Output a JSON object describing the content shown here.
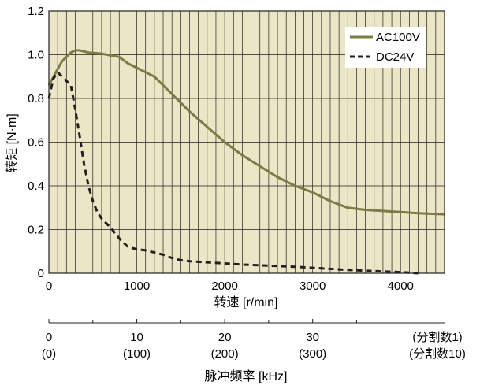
{
  "chart_data": {
    "type": "line",
    "xlabel": "转速 [r/min]",
    "ylabel": "转矩 [N·m]",
    "x_ticks": [
      "0",
      "1000",
      "2000",
      "3000",
      "4000"
    ],
    "y_ticks": [
      "0",
      "0.2",
      "0.4",
      "0.6",
      "0.8",
      "1.0",
      "1.2"
    ],
    "xlim": [
      0,
      4500
    ],
    "ylim": [
      0,
      1.2
    ],
    "grid": "vertical minor gridlines every 100 r/min, horizontal gridlines every 0.2 N·m",
    "background": "#ebe7c6",
    "legend_position": "top-right",
    "series": [
      {
        "name": "AC100V",
        "color": "#7a7b45",
        "style": "solid",
        "x": [
          0,
          80,
          150,
          250,
          300,
          350,
          450,
          600,
          800,
          900,
          1000,
          1100,
          1200,
          1300,
          1500,
          1600,
          1800,
          2000,
          2200,
          2400,
          2600,
          2800,
          3000,
          3200,
          3400,
          3600,
          3800,
          4000,
          4200,
          4500
        ],
        "y": [
          0.86,
          0.92,
          0.97,
          1.01,
          1.02,
          1.02,
          1.01,
          1.005,
          0.99,
          0.96,
          0.94,
          0.92,
          0.9,
          0.86,
          0.78,
          0.74,
          0.67,
          0.6,
          0.54,
          0.49,
          0.44,
          0.4,
          0.37,
          0.33,
          0.3,
          0.29,
          0.285,
          0.28,
          0.275,
          0.27
        ]
      },
      {
        "name": "DC24V",
        "color": "#231f20",
        "style": "dashed",
        "x": [
          0,
          50,
          100,
          150,
          200,
          250,
          300,
          350,
          400,
          450,
          500,
          550,
          600,
          700,
          800,
          900,
          1000,
          1100,
          1200,
          1300,
          1400,
          1500,
          1600,
          1800,
          2000,
          2200,
          2500,
          2800,
          3000,
          3200,
          3400,
          3700,
          4000,
          4200
        ],
        "y": [
          0.8,
          0.89,
          0.92,
          0.9,
          0.88,
          0.86,
          0.75,
          0.63,
          0.5,
          0.4,
          0.33,
          0.28,
          0.25,
          0.21,
          0.16,
          0.12,
          0.11,
          0.105,
          0.095,
          0.085,
          0.07,
          0.06,
          0.055,
          0.05,
          0.045,
          0.04,
          0.035,
          0.03,
          0.025,
          0.02,
          0.015,
          0.01,
          0.005,
          0.0
        ]
      }
    ],
    "secondary_axis": {
      "title": "脉冲频率 [kHz]",
      "ticks": [
        {
          "x": 0,
          "line1": "0",
          "line2": "(0)"
        },
        {
          "x": 1000,
          "line1": "10",
          "line2": "(100)"
        },
        {
          "x": 2000,
          "line1": "20",
          "line2": "(200)"
        },
        {
          "x": 3000,
          "line1": "30",
          "line2": "(300)"
        }
      ],
      "minor_ticks_at": [
        500,
        1500,
        2500,
        3500
      ],
      "extra_label_line1": "(分割数1)",
      "extra_label_line2": "(分割数10)"
    }
  }
}
